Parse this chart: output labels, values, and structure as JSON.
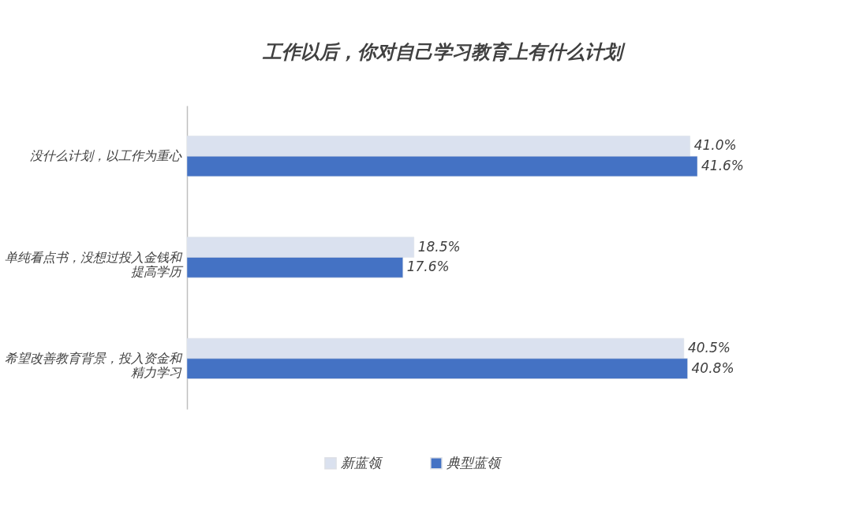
{
  "chart_data": {
    "type": "bar",
    "orientation": "horizontal",
    "title": "工作以后，你对自己学习教育上有什么计划",
    "categories": [
      "没什么计划，以工作为重心",
      "单纯看点书，没想过投入金钱和提高学历",
      "希望改善教育背景，投入资金和精力学习"
    ],
    "series": [
      {
        "name": "新蓝领",
        "color": "#dae1ef",
        "values": [
          41.0,
          18.5,
          40.5
        ],
        "value_labels": [
          "41.0%",
          "18.5%",
          "40.5%"
        ]
      },
      {
        "name": "典型蓝领",
        "color": "#4472c4",
        "values": [
          41.6,
          17.6,
          40.8
        ],
        "value_labels": [
          "41.6%",
          "17.6%",
          "40.8%"
        ]
      }
    ],
    "legend": "bottom",
    "grid": false
  }
}
